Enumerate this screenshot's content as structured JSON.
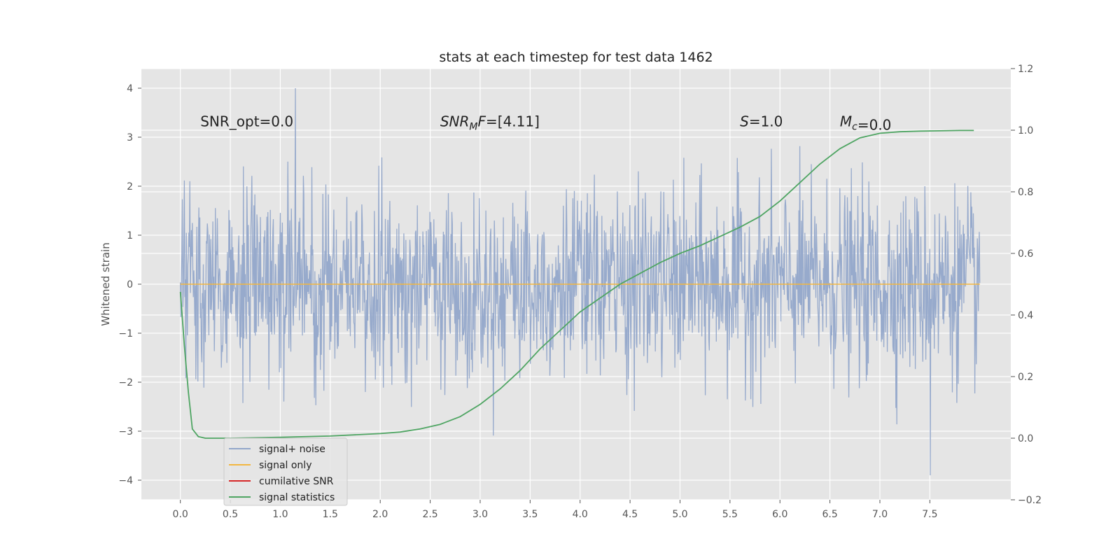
{
  "chart_data": {
    "type": "line",
    "title": "stats at each timestep for test data 1462",
    "xlabel": "",
    "ylabel": "Whitened strain",
    "xlim": [
      -0.39,
      8.31
    ],
    "ylim": [
      -4.4,
      4.4
    ],
    "y2lim": [
      -0.2,
      1.2
    ],
    "x_ticks": [
      "0.0",
      "0.5",
      "1.0",
      "1.5",
      "2.0",
      "2.5",
      "3.0",
      "3.5",
      "4.0",
      "4.5",
      "5.0",
      "5.5",
      "6.0",
      "6.5",
      "7.0",
      "7.5"
    ],
    "y_ticks": [
      "−4",
      "−3",
      "−2",
      "−1",
      "0",
      "1",
      "2",
      "3",
      "4"
    ],
    "y2_ticks": [
      "−0.2",
      "0.0",
      "0.2",
      "0.4",
      "0.6",
      "0.8",
      "1.0",
      "1.2"
    ],
    "grid": true,
    "legend_position": "lower-left",
    "annotations": [
      {
        "text": "SNR_opt=0.0",
        "x": 0.2,
        "y": 3.22
      },
      {
        "text": "SNR",
        "sub": "M",
        "suffix": "F=[4.11]",
        "italic": true,
        "x": 2.6,
        "y": 3.22
      },
      {
        "text": "S",
        "suffix": "=1.0",
        "italic": true,
        "x": 5.6,
        "y": 3.22
      },
      {
        "text": "M",
        "sub": "c",
        "suffix": "=0.0",
        "italic": true,
        "x": 6.6,
        "y": 3.22
      }
    ],
    "series": [
      {
        "name": "signal+ noise",
        "axis": "left",
        "color": "#92a7ca",
        "noise_sigma": 0.95,
        "noise_n": 1600,
        "x_range": [
          0,
          8
        ],
        "y_extremes": [
          4.0,
          -3.9
        ]
      },
      {
        "name": "signal only",
        "axis": "left",
        "color": "#f2b640",
        "x": [
          0,
          8
        ],
        "y": [
          0,
          0
        ]
      },
      {
        "name": "cumilative SNR",
        "axis": "right",
        "color": "#d62728",
        "x": [],
        "y": []
      },
      {
        "name": "signal statistics",
        "axis": "right",
        "color": "#4fa563",
        "x": [
          0.0,
          0.04,
          0.08,
          0.12,
          0.18,
          0.25,
          0.32,
          0.5,
          1.0,
          1.5,
          2.0,
          2.2,
          2.4,
          2.6,
          2.8,
          3.0,
          3.2,
          3.4,
          3.6,
          3.8,
          4.0,
          4.2,
          4.4,
          4.6,
          4.8,
          5.0,
          5.2,
          5.4,
          5.6,
          5.8,
          6.0,
          6.2,
          6.4,
          6.6,
          6.8,
          7.0,
          7.2,
          7.4,
          7.6,
          7.8,
          7.94
        ],
        "y": [
          0.475,
          0.3,
          0.15,
          0.03,
          0.005,
          0.0,
          0.0,
          0.0,
          0.003,
          0.007,
          0.015,
          0.02,
          0.03,
          0.045,
          0.07,
          0.11,
          0.16,
          0.22,
          0.29,
          0.35,
          0.41,
          0.455,
          0.5,
          0.535,
          0.57,
          0.6,
          0.625,
          0.655,
          0.685,
          0.72,
          0.77,
          0.83,
          0.89,
          0.94,
          0.975,
          0.99,
          0.995,
          0.997,
          0.998,
          0.999,
          0.999
        ]
      }
    ]
  }
}
